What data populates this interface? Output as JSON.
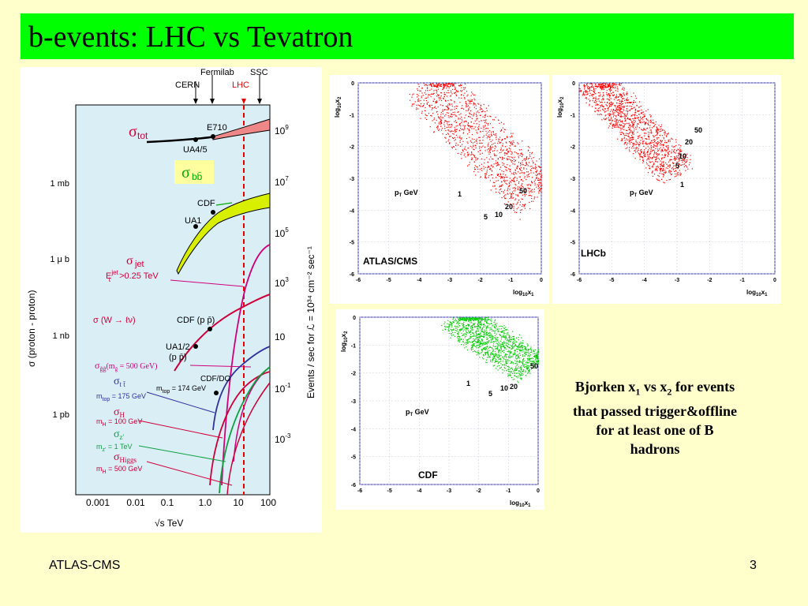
{
  "slide": {
    "title": "b-events:  LHC vs Tevatron",
    "footer_left": "ATLAS-CMS",
    "page_number": "3",
    "caption": {
      "line1_a": "Bjorken x",
      "line1_sub1": "1",
      "line1_b": " vs x",
      "line1_sub2": "2",
      "line1_c": "  for events",
      "line2": "that passed trigger&offline",
      "line3": "for at least one of B",
      "line4": "hadrons"
    }
  },
  "cross_section_plot": {
    "top_labels": {
      "fermilab": "Fermilab",
      "ssc": "SSC",
      "cern": "CERN",
      "lhc": "LHC"
    },
    "left_axis_label": "σ  (proton - proton)",
    "left_ticks": [
      "1 mb",
      "1 μ b",
      "1 nb",
      "1 pb"
    ],
    "right_axis_label": "Events / sec for  ℒ  = 10³⁴ cm⁻² sec⁻¹",
    "right_ticks": [
      {
        "base": "10",
        "exp": "9"
      },
      {
        "base": "10",
        "exp": "7"
      },
      {
        "base": "10",
        "exp": "5"
      },
      {
        "base": "10",
        "exp": "3"
      },
      {
        "base": "10",
        "exp": ""
      },
      {
        "base": "10",
        "exp": "-1"
      },
      {
        "base": "10",
        "exp": "-3"
      }
    ],
    "x_ticks": [
      "0.001",
      "0.01",
      "0.1",
      "1.0",
      "10",
      "100"
    ],
    "x_label": "√s    TeV",
    "curve_labels": {
      "sigma_tot": "σ",
      "tot": "tot",
      "sigma_bb": "σ",
      "bb": "bb̄",
      "e710": "E710",
      "ua45": "UA4/5",
      "cdf": "CDF",
      "ua1": "UA1",
      "sigma_jet": "σ",
      "jet": "jet",
      "et_cut": "E",
      "et_sup": "jet",
      "et_sub": "t",
      "et_value": " >0.25 TeV",
      "sigma_w": "σ (W → ℓν)",
      "cdf_pp": "CDF (p p̄)",
      "ua12": "UA1/2",
      "ua12_pp": "(p p̄)",
      "sigma_gg": "σ",
      "gg_sub": "g̃g̃",
      "gg_mass": "(m",
      "gg_mass_sub": "g̃",
      "gg_mass_val": " = 500 GeV)",
      "sigma_tt": "σ",
      "tt_sub": "t t̄",
      "cdf_do": "CDF/DO",
      "mtop1": "m",
      "mtop1_sub": "top",
      "mtop1_val": " = 174 GeV",
      "mtop2": "m",
      "mtop2_sub": "top",
      "mtop2_val": " = 175 GeV",
      "sigma_h": "σ",
      "h_sub": "H",
      "mh1": "m",
      "mh1_sub": "H",
      "mh1_val": " = 100 GeV",
      "sigma_z": "σ",
      "z_sub": "z'",
      "mz": "m",
      "mz_sub": "z'",
      "mz_val": " = 1 TeV",
      "sigma_higgs": "σ",
      "higgs_sub": "Higgs",
      "mh2": "m",
      "mh2_sub": "H",
      "mh2_val": " = 500 GeV"
    }
  },
  "scatter_panels": [
    {
      "id": "atlas-cms",
      "name": "ATLAS/CMS",
      "color": "#ff0000",
      "x_ticks": [
        "-6",
        "-5",
        "-4",
        "-3",
        "-2",
        "-1",
        "0"
      ],
      "y_ticks": [
        "0",
        "-1",
        "-2",
        "-3",
        "-4",
        "-5",
        "-6"
      ],
      "x_label": "log",
      "x_label_sub": "10",
      "x_label_var": "x",
      "x_label_var_sub": "1",
      "y_label": "log",
      "y_label_sub": "10",
      "y_label_var": "x",
      "y_label_var_sub": "2",
      "pt_label": "p",
      "pt_sub": "T",
      "pt_unit": " GeV",
      "bands": [
        "1",
        "5",
        "10",
        "20",
        "50"
      ]
    },
    {
      "id": "lhcb",
      "name": "LHCb",
      "color": "#ff0000",
      "x_ticks": [
        "-6",
        "-5",
        "-4",
        "-3",
        "-2",
        "-1",
        "0"
      ],
      "y_ticks": [
        "0",
        "-1",
        "-2",
        "-3",
        "-4",
        "-5",
        "-6"
      ],
      "x_label": "log",
      "x_label_sub": "10",
      "x_label_var": "x",
      "x_label_var_sub": "1",
      "y_label": "log",
      "y_label_sub": "10",
      "y_label_var": "x",
      "y_label_var_sub": "2",
      "pt_label": "p",
      "pt_sub": "T",
      "pt_unit": " GeV",
      "bands": [
        "1",
        "5",
        "10",
        "20",
        "50"
      ]
    },
    {
      "id": "cdf",
      "name": "CDF",
      "color": "#00cc00",
      "x_ticks": [
        "-6",
        "-5",
        "-4",
        "-3",
        "-2",
        "-1",
        "0"
      ],
      "y_ticks": [
        "0",
        "-1",
        "-2",
        "-3",
        "-4",
        "-5",
        "-6"
      ],
      "x_label": "log",
      "x_label_sub": "10",
      "x_label_var": "x",
      "x_label_var_sub": "1",
      "y_label": "log",
      "y_label_sub": "10",
      "y_label_var": "x",
      "y_label_var_sub": "2",
      "pt_label": "p",
      "pt_sub": "T",
      "pt_unit": " GeV",
      "bands": [
        "1",
        "5",
        "10",
        "20",
        "50"
      ]
    }
  ]
}
